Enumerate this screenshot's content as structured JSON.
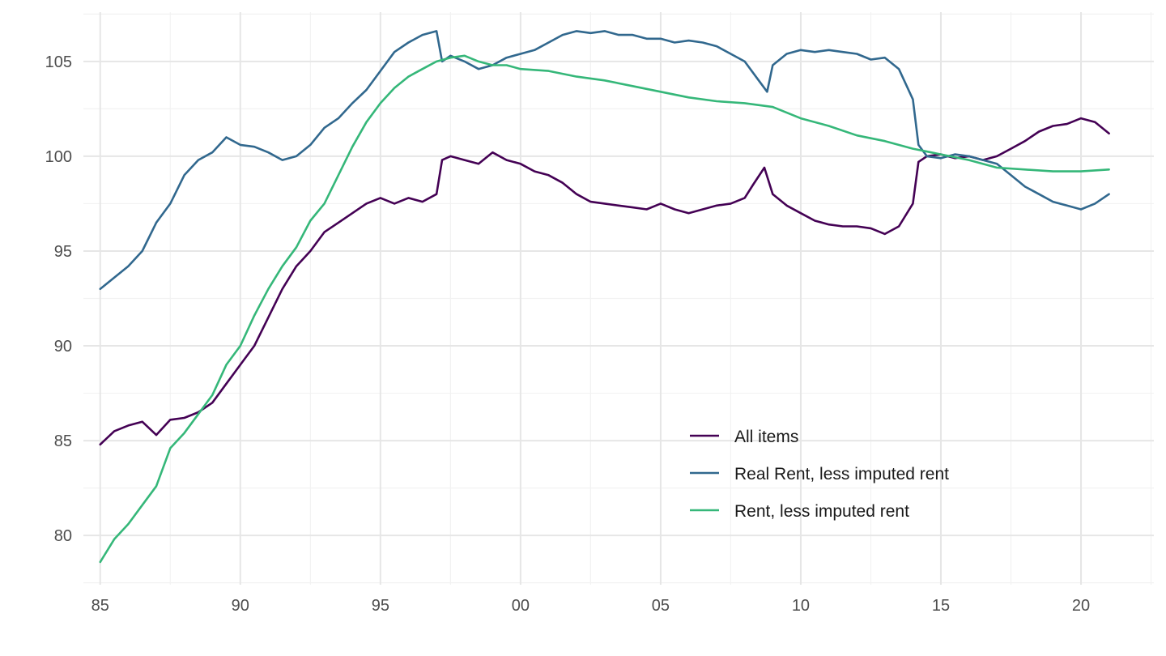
{
  "chart_data": {
    "type": "line",
    "title": "",
    "xlabel": "",
    "ylabel": "",
    "x_range": [
      1984.4,
      2022.6
    ],
    "ylim": [
      77.4,
      107.6
    ],
    "x_ticks": [
      {
        "value": 1985,
        "label": "85"
      },
      {
        "value": 1990,
        "label": "90"
      },
      {
        "value": 1995,
        "label": "95"
      },
      {
        "value": 2000,
        "label": "00"
      },
      {
        "value": 2005,
        "label": "05"
      },
      {
        "value": 2010,
        "label": "10"
      },
      {
        "value": 2015,
        "label": "15"
      },
      {
        "value": 2020,
        "label": "20"
      }
    ],
    "y_ticks": [
      {
        "value": 80,
        "label": "80"
      },
      {
        "value": 85,
        "label": "85"
      },
      {
        "value": 90,
        "label": "90"
      },
      {
        "value": 95,
        "label": "95"
      },
      {
        "value": 100,
        "label": "100"
      },
      {
        "value": 105,
        "label": "105"
      }
    ],
    "grid": true,
    "legend_position": "bottom-right",
    "series": [
      {
        "name": "All items",
        "color": "#440154",
        "x": [
          1985.0,
          1985.5,
          1986.0,
          1986.5,
          1987.0,
          1987.5,
          1988.0,
          1988.5,
          1989.0,
          1989.5,
          1990.0,
          1990.5,
          1991.0,
          1991.5,
          1992.0,
          1992.5,
          1993.0,
          1993.5,
          1994.0,
          1994.5,
          1995.0,
          1995.5,
          1996.0,
          1996.5,
          1997.0,
          1997.2,
          1997.5,
          1998.0,
          1998.5,
          1999.0,
          1999.5,
          2000.0,
          2000.5,
          2001.0,
          2001.5,
          2002.0,
          2002.5,
          2003.0,
          2003.5,
          2004.0,
          2004.5,
          2005.0,
          2005.5,
          2006.0,
          2006.5,
          2007.0,
          2007.5,
          2008.0,
          2008.3,
          2008.7,
          2009.0,
          2009.5,
          2010.0,
          2010.5,
          2011.0,
          2011.5,
          2012.0,
          2012.5,
          2013.0,
          2013.5,
          2014.0,
          2014.2,
          2014.5,
          2015.0,
          2015.5,
          2016.0,
          2016.5,
          2017.0,
          2017.5,
          2018.0,
          2018.5,
          2019.0,
          2019.5,
          2020.0,
          2020.5,
          2021.0
        ],
        "y": [
          84.8,
          85.5,
          85.8,
          86.0,
          85.3,
          86.1,
          86.2,
          86.5,
          87.0,
          88.0,
          89.0,
          90.0,
          91.5,
          93.0,
          94.2,
          95.0,
          96.0,
          96.5,
          97.0,
          97.5,
          97.8,
          97.5,
          97.8,
          97.6,
          98.0,
          99.8,
          100.0,
          99.8,
          99.6,
          100.2,
          99.8,
          99.6,
          99.2,
          99.0,
          98.6,
          98.0,
          97.6,
          97.5,
          97.4,
          97.3,
          97.2,
          97.5,
          97.2,
          97.0,
          97.2,
          97.4,
          97.5,
          97.8,
          98.5,
          99.4,
          98.0,
          97.4,
          97.0,
          96.6,
          96.4,
          96.3,
          96.3,
          96.2,
          95.9,
          96.3,
          97.5,
          99.7,
          100.0,
          100.1,
          99.9,
          100.0,
          99.8,
          100.0,
          100.4,
          100.8,
          101.3,
          101.6,
          101.7,
          102.0,
          101.8,
          101.2
        ]
      },
      {
        "name": "Real Rent, less imputed rent",
        "color": "#31688e",
        "x": [
          1985.0,
          1985.5,
          1986.0,
          1986.5,
          1987.0,
          1987.5,
          1988.0,
          1988.5,
          1989.0,
          1989.5,
          1990.0,
          1990.5,
          1991.0,
          1991.5,
          1992.0,
          1992.5,
          1993.0,
          1993.5,
          1994.0,
          1994.5,
          1995.0,
          1995.5,
          1996.0,
          1996.5,
          1997.0,
          1997.2,
          1997.5,
          1998.0,
          1998.5,
          1999.0,
          1999.5,
          2000.0,
          2000.5,
          2001.0,
          2001.5,
          2002.0,
          2002.5,
          2003.0,
          2003.5,
          2004.0,
          2004.5,
          2005.0,
          2005.5,
          2006.0,
          2006.5,
          2007.0,
          2007.5,
          2008.0,
          2008.5,
          2008.8,
          2009.0,
          2009.5,
          2010.0,
          2010.5,
          2011.0,
          2011.5,
          2012.0,
          2012.5,
          2013.0,
          2013.5,
          2014.0,
          2014.2,
          2014.5,
          2015.0,
          2015.5,
          2016.0,
          2016.5,
          2017.0,
          2017.5,
          2018.0,
          2018.5,
          2019.0,
          2019.5,
          2020.0,
          2020.5,
          2021.0
        ],
        "y": [
          93.0,
          93.6,
          94.2,
          95.0,
          96.5,
          97.5,
          99.0,
          99.8,
          100.2,
          101.0,
          100.6,
          100.5,
          100.2,
          99.8,
          100.0,
          100.6,
          101.5,
          102.0,
          102.8,
          103.5,
          104.5,
          105.5,
          106.0,
          106.4,
          106.6,
          105.0,
          105.3,
          105.0,
          104.6,
          104.8,
          105.2,
          105.4,
          105.6,
          106.0,
          106.4,
          106.6,
          106.5,
          106.6,
          106.4,
          106.4,
          106.2,
          106.2,
          106.0,
          106.1,
          106.0,
          105.8,
          105.4,
          105.0,
          104.0,
          103.4,
          104.8,
          105.4,
          105.6,
          105.5,
          105.6,
          105.5,
          105.4,
          105.1,
          105.2,
          104.6,
          103.0,
          100.6,
          100.0,
          99.9,
          100.1,
          100.0,
          99.8,
          99.6,
          99.0,
          98.4,
          98.0,
          97.6,
          97.4,
          97.2,
          97.5,
          98.0
        ]
      },
      {
        "name": "Rent, less imputed rent",
        "color": "#35b779",
        "x": [
          1985.0,
          1985.5,
          1986.0,
          1986.5,
          1987.0,
          1987.5,
          1988.0,
          1988.5,
          1989.0,
          1989.5,
          1990.0,
          1990.5,
          1991.0,
          1991.5,
          1992.0,
          1992.5,
          1993.0,
          1993.5,
          1994.0,
          1994.5,
          1995.0,
          1995.5,
          1996.0,
          1996.5,
          1997.0,
          1997.5,
          1998.0,
          1998.5,
          1999.0,
          1999.5,
          2000.0,
          2001.0,
          2002.0,
          2003.0,
          2004.0,
          2005.0,
          2006.0,
          2007.0,
          2008.0,
          2009.0,
          2010.0,
          2011.0,
          2012.0,
          2013.0,
          2014.0,
          2015.0,
          2016.0,
          2017.0,
          2018.0,
          2019.0,
          2020.0,
          2021.0
        ],
        "y": [
          78.6,
          79.8,
          80.6,
          81.6,
          82.6,
          84.6,
          85.4,
          86.4,
          87.4,
          89.0,
          90.0,
          91.6,
          93.0,
          94.2,
          95.2,
          96.6,
          97.5,
          99.0,
          100.5,
          101.8,
          102.8,
          103.6,
          104.2,
          104.6,
          105.0,
          105.2,
          105.3,
          105.0,
          104.8,
          104.8,
          104.6,
          104.5,
          104.2,
          104.0,
          103.7,
          103.4,
          103.1,
          102.9,
          102.8,
          102.6,
          102.0,
          101.6,
          101.1,
          100.8,
          100.4,
          100.1,
          99.8,
          99.4,
          99.3,
          99.2,
          99.2,
          99.3
        ]
      }
    ]
  }
}
